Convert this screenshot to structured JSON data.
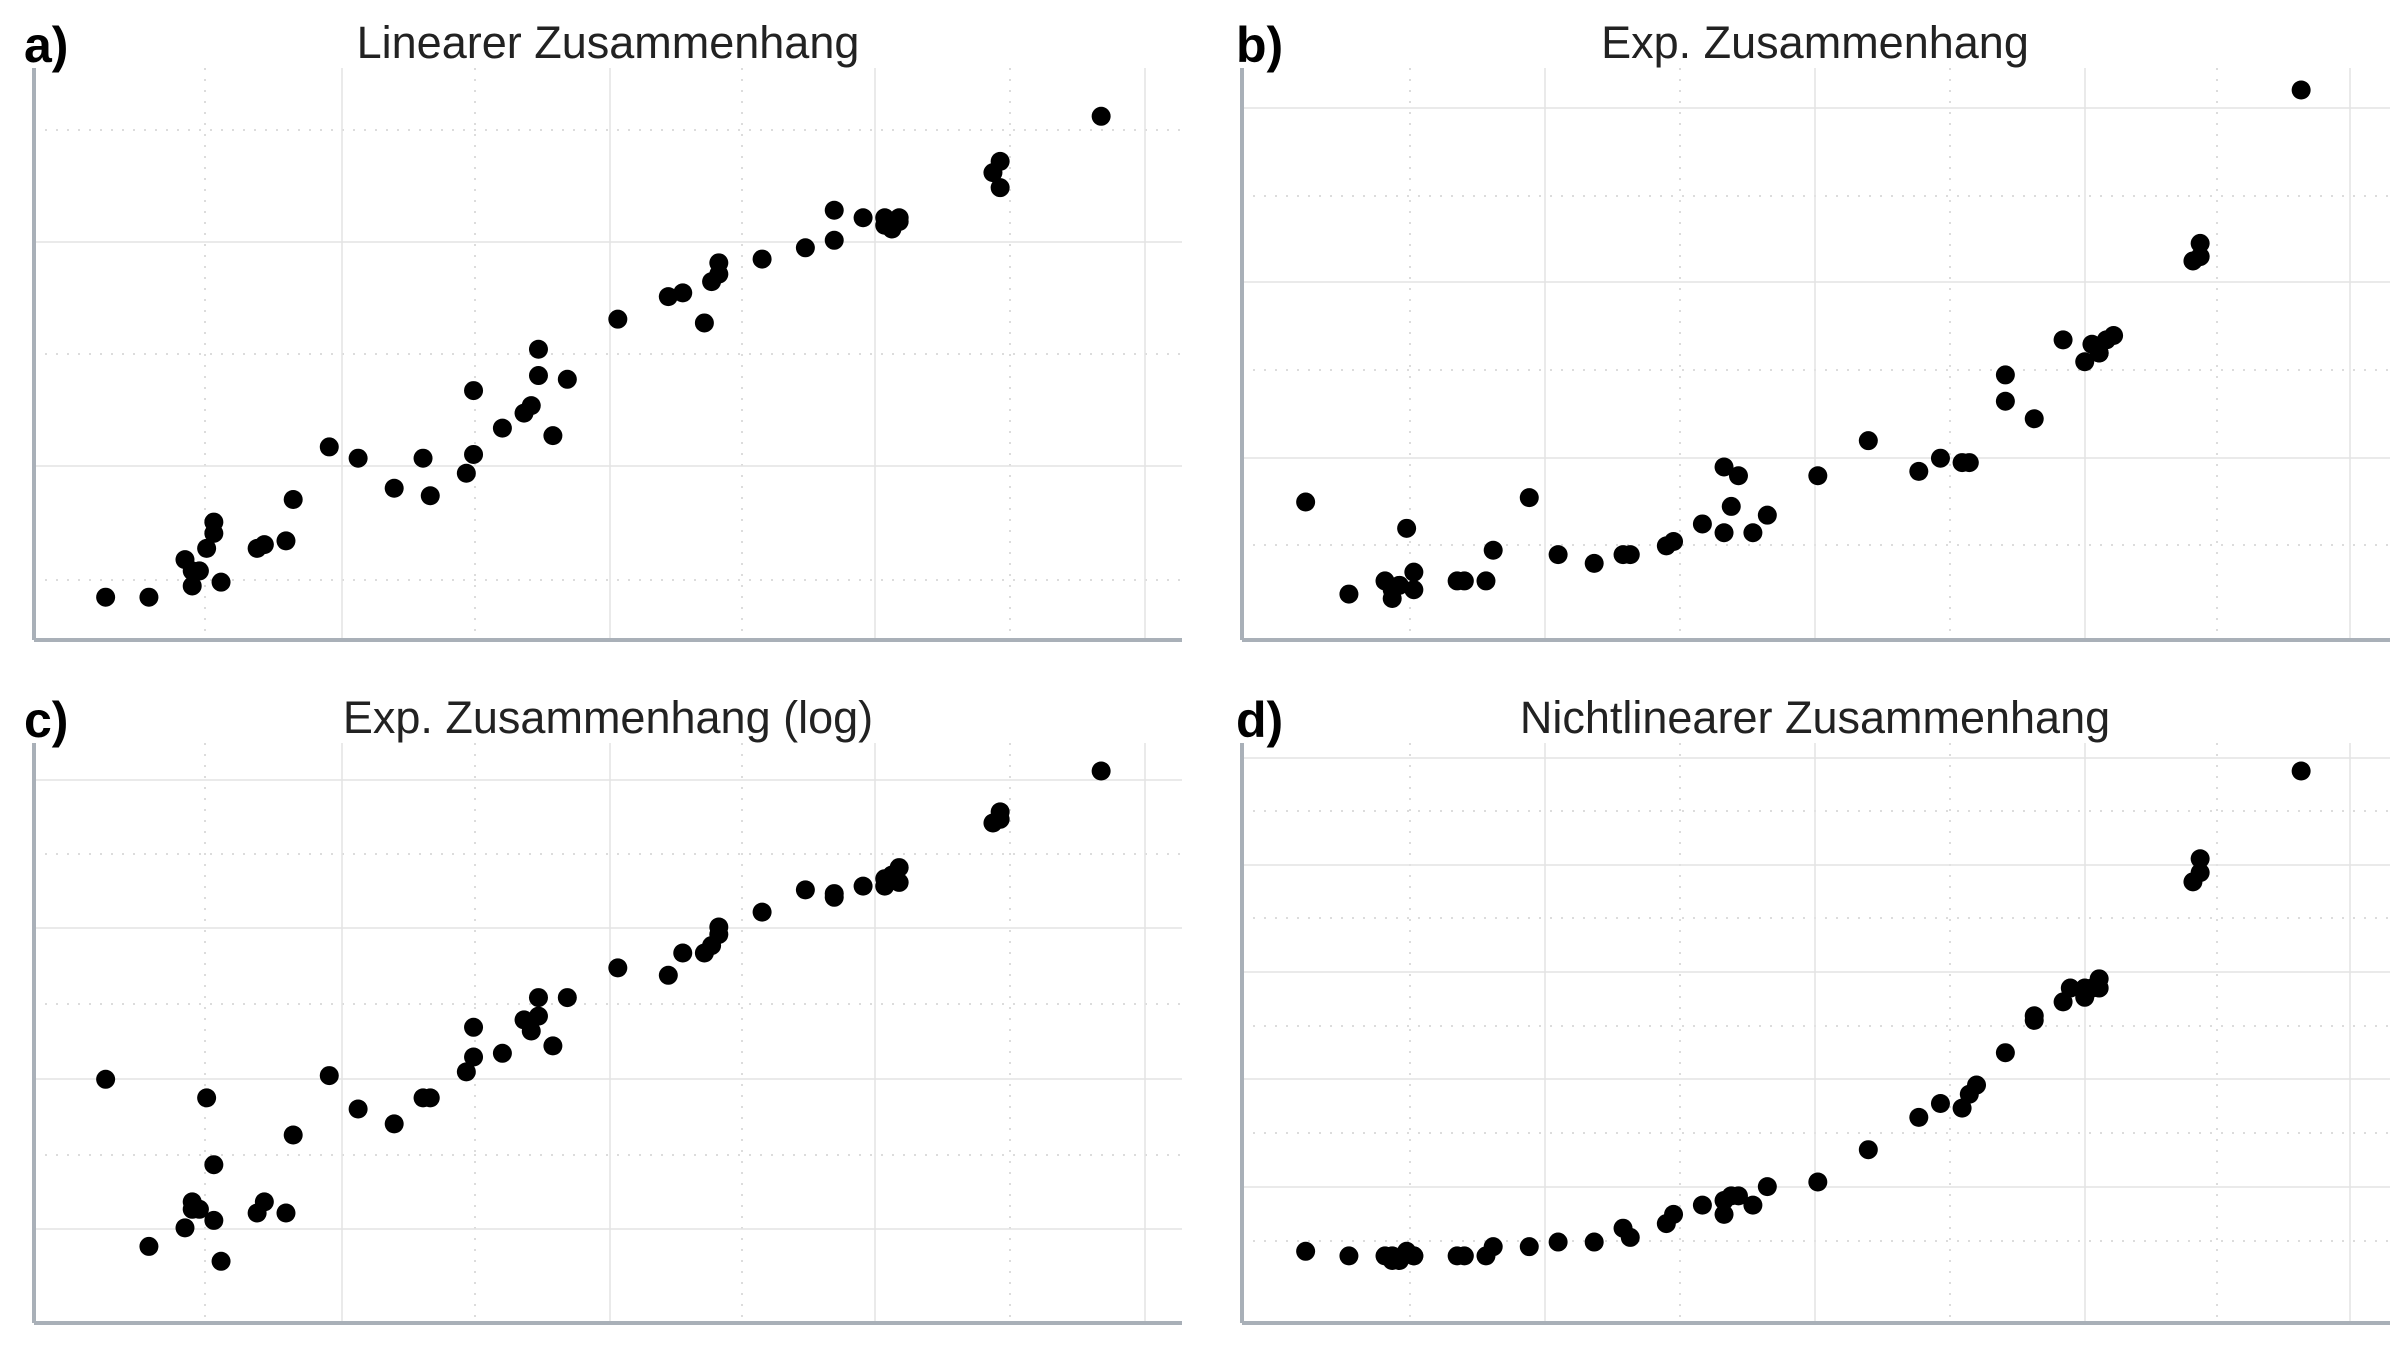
{
  "chart_data": [
    {
      "type": "scatter",
      "panel_label": "a)",
      "title": "Linearer Zusammenhang",
      "xlabel": "",
      "ylabel": "",
      "grid": true,
      "points": [
        [
          0.03,
          0.05
        ],
        [
          0.09,
          0.05
        ],
        [
          0.14,
          0.15
        ],
        [
          0.15,
          0.08
        ],
        [
          0.15,
          0.12
        ],
        [
          0.16,
          0.12
        ],
        [
          0.17,
          0.18
        ],
        [
          0.18,
          0.22
        ],
        [
          0.18,
          0.25
        ],
        [
          0.19,
          0.09
        ],
        [
          0.24,
          0.18
        ],
        [
          0.25,
          0.19
        ],
        [
          0.28,
          0.2
        ],
        [
          0.29,
          0.31
        ],
        [
          0.34,
          0.45
        ],
        [
          0.38,
          0.42
        ],
        [
          0.43,
          0.34
        ],
        [
          0.47,
          0.42
        ],
        [
          0.48,
          0.32
        ],
        [
          0.53,
          0.38
        ],
        [
          0.54,
          0.43
        ],
        [
          0.54,
          0.6
        ],
        [
          0.58,
          0.5
        ],
        [
          0.61,
          0.54
        ],
        [
          0.62,
          0.56
        ],
        [
          0.63,
          0.71
        ],
        [
          0.63,
          0.64
        ],
        [
          0.65,
          0.48
        ],
        [
          0.67,
          0.63
        ],
        [
          0.74,
          0.79
        ],
        [
          0.81,
          0.85
        ],
        [
          0.83,
          0.86
        ],
        [
          0.86,
          0.78
        ],
        [
          0.87,
          0.89
        ],
        [
          0.88,
          0.94
        ],
        [
          0.88,
          0.91
        ],
        [
          0.94,
          0.95
        ],
        [
          1.0,
          0.98
        ],
        [
          1.04,
          1.08
        ],
        [
          1.04,
          1.0
        ],
        [
          1.08,
          1.06
        ],
        [
          1.11,
          1.06
        ],
        [
          1.11,
          1.04
        ],
        [
          1.12,
          1.03
        ],
        [
          1.13,
          1.06
        ],
        [
          1.13,
          1.05
        ],
        [
          1.26,
          1.18
        ],
        [
          1.27,
          1.21
        ],
        [
          1.27,
          1.14
        ],
        [
          1.41,
          1.33
        ]
      ]
    },
    {
      "type": "scatter",
      "panel_label": "b)",
      "title": "Exp. Zusammenhang",
      "xlabel": "",
      "ylabel": "",
      "grid": true,
      "points": [
        [
          0.03,
          0.26
        ],
        [
          0.09,
          0.05
        ],
        [
          0.14,
          0.08
        ],
        [
          0.15,
          0.06
        ],
        [
          0.15,
          0.04
        ],
        [
          0.16,
          0.07
        ],
        [
          0.17,
          0.2
        ],
        [
          0.18,
          0.1
        ],
        [
          0.18,
          0.06
        ],
        [
          0.24,
          0.08
        ],
        [
          0.25,
          0.08
        ],
        [
          0.28,
          0.08
        ],
        [
          0.29,
          0.15
        ],
        [
          0.34,
          0.27
        ],
        [
          0.38,
          0.14
        ],
        [
          0.43,
          0.12
        ],
        [
          0.47,
          0.14
        ],
        [
          0.48,
          0.14
        ],
        [
          0.53,
          0.16
        ],
        [
          0.54,
          0.17
        ],
        [
          0.58,
          0.21
        ],
        [
          0.61,
          0.19
        ],
        [
          0.61,
          0.34
        ],
        [
          0.62,
          0.25
        ],
        [
          0.63,
          0.32
        ],
        [
          0.65,
          0.19
        ],
        [
          0.67,
          0.23
        ],
        [
          0.74,
          0.32
        ],
        [
          0.81,
          0.4
        ],
        [
          0.88,
          0.33
        ],
        [
          0.91,
          0.36
        ],
        [
          0.94,
          0.35
        ],
        [
          0.95,
          0.35
        ],
        [
          1.0,
          0.55
        ],
        [
          1.0,
          0.49
        ],
        [
          1.04,
          0.45
        ],
        [
          1.08,
          0.63
        ],
        [
          1.11,
          0.58
        ],
        [
          1.12,
          0.62
        ],
        [
          1.13,
          0.6
        ],
        [
          1.13,
          0.6
        ],
        [
          1.14,
          0.63
        ],
        [
          1.15,
          0.64
        ],
        [
          1.26,
          0.81
        ],
        [
          1.27,
          0.82
        ],
        [
          1.27,
          0.85
        ],
        [
          1.41,
          1.2
        ]
      ]
    },
    {
      "type": "scatter",
      "panel_label": "c)",
      "title": "Exp. Zusammenhang (log)",
      "xlabel": "",
      "ylabel": "",
      "grid": true,
      "points": [
        [
          0.03,
          0.57
        ],
        [
          0.09,
          0.12
        ],
        [
          0.14,
          0.17
        ],
        [
          0.15,
          0.24
        ],
        [
          0.15,
          0.22
        ],
        [
          0.16,
          0.22
        ],
        [
          0.17,
          0.52
        ],
        [
          0.18,
          0.34
        ],
        [
          0.18,
          0.19
        ],
        [
          0.19,
          0.08
        ],
        [
          0.24,
          0.21
        ],
        [
          0.25,
          0.24
        ],
        [
          0.28,
          0.21
        ],
        [
          0.29,
          0.42
        ],
        [
          0.34,
          0.58
        ],
        [
          0.38,
          0.49
        ],
        [
          0.43,
          0.45
        ],
        [
          0.47,
          0.52
        ],
        [
          0.48,
          0.52
        ],
        [
          0.53,
          0.59
        ],
        [
          0.54,
          0.63
        ],
        [
          0.54,
          0.71
        ],
        [
          0.58,
          0.64
        ],
        [
          0.61,
          0.73
        ],
        [
          0.62,
          0.7
        ],
        [
          0.63,
          0.79
        ],
        [
          0.63,
          0.74
        ],
        [
          0.65,
          0.66
        ],
        [
          0.67,
          0.79
        ],
        [
          0.74,
          0.87
        ],
        [
          0.81,
          0.85
        ],
        [
          0.83,
          0.91
        ],
        [
          0.86,
          0.91
        ],
        [
          0.87,
          0.93
        ],
        [
          0.88,
          0.96
        ],
        [
          0.88,
          0.98
        ],
        [
          0.94,
          1.02
        ],
        [
          1.0,
          1.08
        ],
        [
          1.04,
          1.06
        ],
        [
          1.04,
          1.07
        ],
        [
          1.08,
          1.09
        ],
        [
          1.11,
          1.09
        ],
        [
          1.11,
          1.11
        ],
        [
          1.12,
          1.12
        ],
        [
          1.13,
          1.1
        ],
        [
          1.13,
          1.14
        ],
        [
          1.26,
          1.26
        ],
        [
          1.27,
          1.27
        ],
        [
          1.27,
          1.29
        ],
        [
          1.41,
          1.4
        ]
      ]
    },
    {
      "type": "scatter",
      "panel_label": "d)",
      "title": "Nichtlinearer Zusammenhang",
      "xlabel": "",
      "ylabel": "",
      "grid": true,
      "points": [
        [
          0.03,
          0.06
        ],
        [
          0.09,
          0.05
        ],
        [
          0.14,
          0.05
        ],
        [
          0.15,
          0.04
        ],
        [
          0.15,
          0.05
        ],
        [
          0.16,
          0.04
        ],
        [
          0.17,
          0.06
        ],
        [
          0.18,
          0.05
        ],
        [
          0.18,
          0.05
        ],
        [
          0.24,
          0.05
        ],
        [
          0.25,
          0.05
        ],
        [
          0.28,
          0.05
        ],
        [
          0.29,
          0.07
        ],
        [
          0.34,
          0.07
        ],
        [
          0.38,
          0.08
        ],
        [
          0.43,
          0.08
        ],
        [
          0.47,
          0.11
        ],
        [
          0.48,
          0.09
        ],
        [
          0.53,
          0.12
        ],
        [
          0.54,
          0.14
        ],
        [
          0.58,
          0.16
        ],
        [
          0.61,
          0.14
        ],
        [
          0.61,
          0.17
        ],
        [
          0.62,
          0.18
        ],
        [
          0.63,
          0.18
        ],
        [
          0.65,
          0.16
        ],
        [
          0.67,
          0.2
        ],
        [
          0.74,
          0.21
        ],
        [
          0.81,
          0.28
        ],
        [
          0.88,
          0.35
        ],
        [
          0.91,
          0.38
        ],
        [
          0.94,
          0.37
        ],
        [
          0.95,
          0.4
        ],
        [
          0.96,
          0.42
        ],
        [
          1.0,
          0.49
        ],
        [
          1.04,
          0.56
        ],
        [
          1.04,
          0.57
        ],
        [
          1.08,
          0.6
        ],
        [
          1.09,
          0.63
        ],
        [
          1.11,
          0.63
        ],
        [
          1.11,
          0.61
        ],
        [
          1.12,
          0.63
        ],
        [
          1.13,
          0.63
        ],
        [
          1.13,
          0.65
        ],
        [
          1.26,
          0.86
        ],
        [
          1.27,
          0.88
        ],
        [
          1.27,
          0.91
        ],
        [
          1.41,
          1.1
        ]
      ]
    }
  ]
}
